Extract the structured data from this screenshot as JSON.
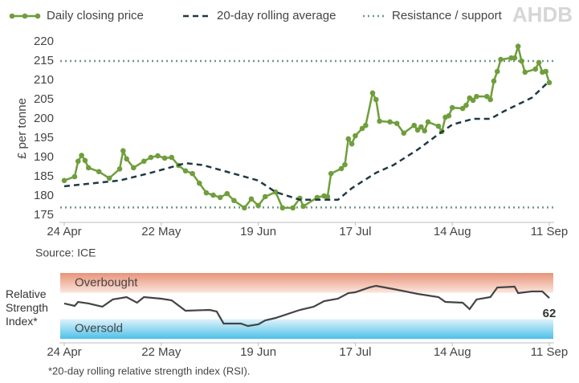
{
  "chart_data": [
    {
      "type": "line",
      "logo": "AHDB",
      "y_label": "£ per tonne",
      "source": "Source: ICE",
      "xlim": [
        "24 Apr",
        "11 Sep"
      ],
      "xticks": [
        "24 Apr",
        "22 May",
        "19 Jun",
        "17 Jul",
        "14 Aug",
        "11 Sep"
      ],
      "ylim": [
        175,
        220
      ],
      "yticks": [
        175,
        180,
        185,
        190,
        195,
        200,
        205,
        210,
        215,
        220
      ],
      "series": [
        {
          "name": "Daily closing price",
          "color": "#6f9e3c",
          "style": "solid",
          "markers": true,
          "x": [
            "24 Apr",
            "27 Apr",
            "28 Apr",
            "29 Apr",
            "30 Apr",
            "1 May",
            "4 May",
            "7 May",
            "10 May",
            "11 May",
            "12 May",
            "14 May",
            "17 May",
            "19 May",
            "21 May",
            "23 May",
            "25 May",
            "27 May",
            "29 May",
            "31 May",
            "2 Jun",
            "4 Jun",
            "6 Jun",
            "8 Jun",
            "10 Jun",
            "12 Jun",
            "15 Jun",
            "17 Jun",
            "19 Jun",
            "21 Jun",
            "24 Jun",
            "26 Jun",
            "29 Jun",
            "1 Jul",
            "2 Jul",
            "6 Jul",
            "8 Jul",
            "9 Jul",
            "10 Jul",
            "13 Jul",
            "14 Jul",
            "15 Jul",
            "16 Jul",
            "17 Jul",
            "19 Jul",
            "20 Jul",
            "22 Jul",
            "23 Jul",
            "24 Jul",
            "27 Jul",
            "29 Jul",
            "31 Jul",
            "3 Aug",
            "4 Aug",
            "5 Aug",
            "6 Aug",
            "7 Aug",
            "10 Aug",
            "11 Aug",
            "12 Aug",
            "13 Aug",
            "14 Aug",
            "17 Aug",
            "18 Aug",
            "19 Aug",
            "20 Aug",
            "21 Aug",
            "24 Aug",
            "25 Aug",
            "26 Aug",
            "27 Aug",
            "28 Aug",
            "31 Aug",
            "1 Sep",
            "2 Sep",
            "3 Sep",
            "4 Sep",
            "7 Sep",
            "8 Sep",
            "9 Sep",
            "10 Sep",
            "11 Sep"
          ],
          "values": [
            184,
            185,
            189,
            190.5,
            189.2,
            187.3,
            186.3,
            184.6,
            187,
            191.7,
            189.6,
            187.3,
            189,
            190,
            190.4,
            189.8,
            190,
            187.9,
            186.5,
            185.8,
            183.3,
            180.8,
            180.2,
            179.6,
            180.6,
            178.8,
            176.9,
            179.2,
            177.5,
            179.8,
            181,
            176.9,
            176.9,
            179.4,
            177.3,
            179.6,
            180,
            179.8,
            185.8,
            187.1,
            188.1,
            194.8,
            193.5,
            195.6,
            197.5,
            198.3,
            206.7,
            205,
            199.4,
            199.2,
            198.8,
            196.3,
            198.3,
            197.1,
            197.9,
            196.9,
            199.2,
            198.1,
            196.7,
            200.4,
            200.8,
            202.9,
            202.7,
            203.5,
            205.4,
            204.8,
            205.8,
            205.8,
            205,
            209.8,
            212.3,
            215.4,
            215.8,
            215.8,
            218.8,
            215,
            212.1,
            212.9,
            214.6,
            212.1,
            212.3,
            209.4
          ]
        },
        {
          "name": "20-day rolling average",
          "color": "#1e3a44",
          "style": "dashed",
          "markers": false,
          "x": [
            "24 Apr",
            "10 May",
            "19 May",
            "29 May",
            "3 Jun",
            "11 Jun",
            "19 Jun",
            "24 Jun",
            "1 Jul",
            "12 Jul",
            "16 Jul",
            "23 Jul",
            "28 Jul",
            "4 Aug",
            "10 Aug",
            "14 Aug",
            "20 Aug",
            "25 Aug",
            "29 Aug",
            "6 Sep",
            "11 Sep"
          ],
          "values": [
            182.5,
            184,
            186,
            188.5,
            188,
            186,
            184,
            181,
            179,
            179,
            182,
            186,
            188,
            192,
            196,
            198.5,
            200,
            200,
            202,
            205.5,
            209.8
          ]
        }
      ],
      "reference_lines": {
        "name": "Resistance / support",
        "color": "#6f9a80",
        "values": [
          215,
          177
        ]
      }
    },
    {
      "type": "line",
      "y_label": "Relative Strength Index*",
      "note": "*20-day rolling relative strength index (RSI).",
      "xlim": [
        "24 Apr",
        "11 Sep"
      ],
      "xticks": [
        "24 Apr",
        "22 May",
        "19 Jun",
        "17 Jul",
        "14 Aug",
        "11 Sep"
      ],
      "ylim": [
        0,
        100
      ],
      "bands": [
        {
          "label": "Overbought",
          "range": [
            70,
            100
          ],
          "color": "#e8937a"
        },
        {
          "label": "Oversold",
          "range": [
            0,
            30
          ],
          "color": "#4ec0e8"
        }
      ],
      "series": [
        {
          "color": "#444444",
          "x": [
            "24 Apr",
            "27 Apr",
            "28 Apr",
            "1 May",
            "5 May",
            "8 May",
            "12 May",
            "15 May",
            "17 May",
            "22 May",
            "25 May",
            "29 May",
            "5 Jun",
            "7 Jun",
            "9 Jun",
            "14 Jun",
            "16 Jun",
            "19 Jun",
            "21 Jun",
            "24 Jun",
            "1 Jul",
            "5 Jul",
            "8 Jul",
            "12 Jul",
            "15 Jul",
            "17 Jul",
            "21 Jul",
            "23 Jul",
            "28 Jul",
            "4 Aug",
            "10 Aug",
            "12 Aug",
            "17 Aug",
            "19 Aug",
            "21 Aug",
            "25 Aug",
            "27 Aug",
            "1 Sep",
            "2 Sep",
            "6 Sep",
            "9 Sep",
            "11 Sep"
          ],
          "values": [
            53.7,
            50,
            56,
            53.7,
            48.8,
            59.8,
            63.4,
            54.9,
            63.4,
            61,
            58.5,
            42.7,
            43.9,
            41.5,
            23.2,
            23.2,
            19.5,
            22,
            28,
            31.7,
            43.9,
            48.8,
            57.3,
            61,
            69.5,
            70.7,
            78,
            80.5,
            75.6,
            68.3,
            63.4,
            56.1,
            54.9,
            45.1,
            59.8,
            63.4,
            78,
            79.3,
            69.5,
            72,
            72,
            62
          ]
        }
      ]
    }
  ]
}
